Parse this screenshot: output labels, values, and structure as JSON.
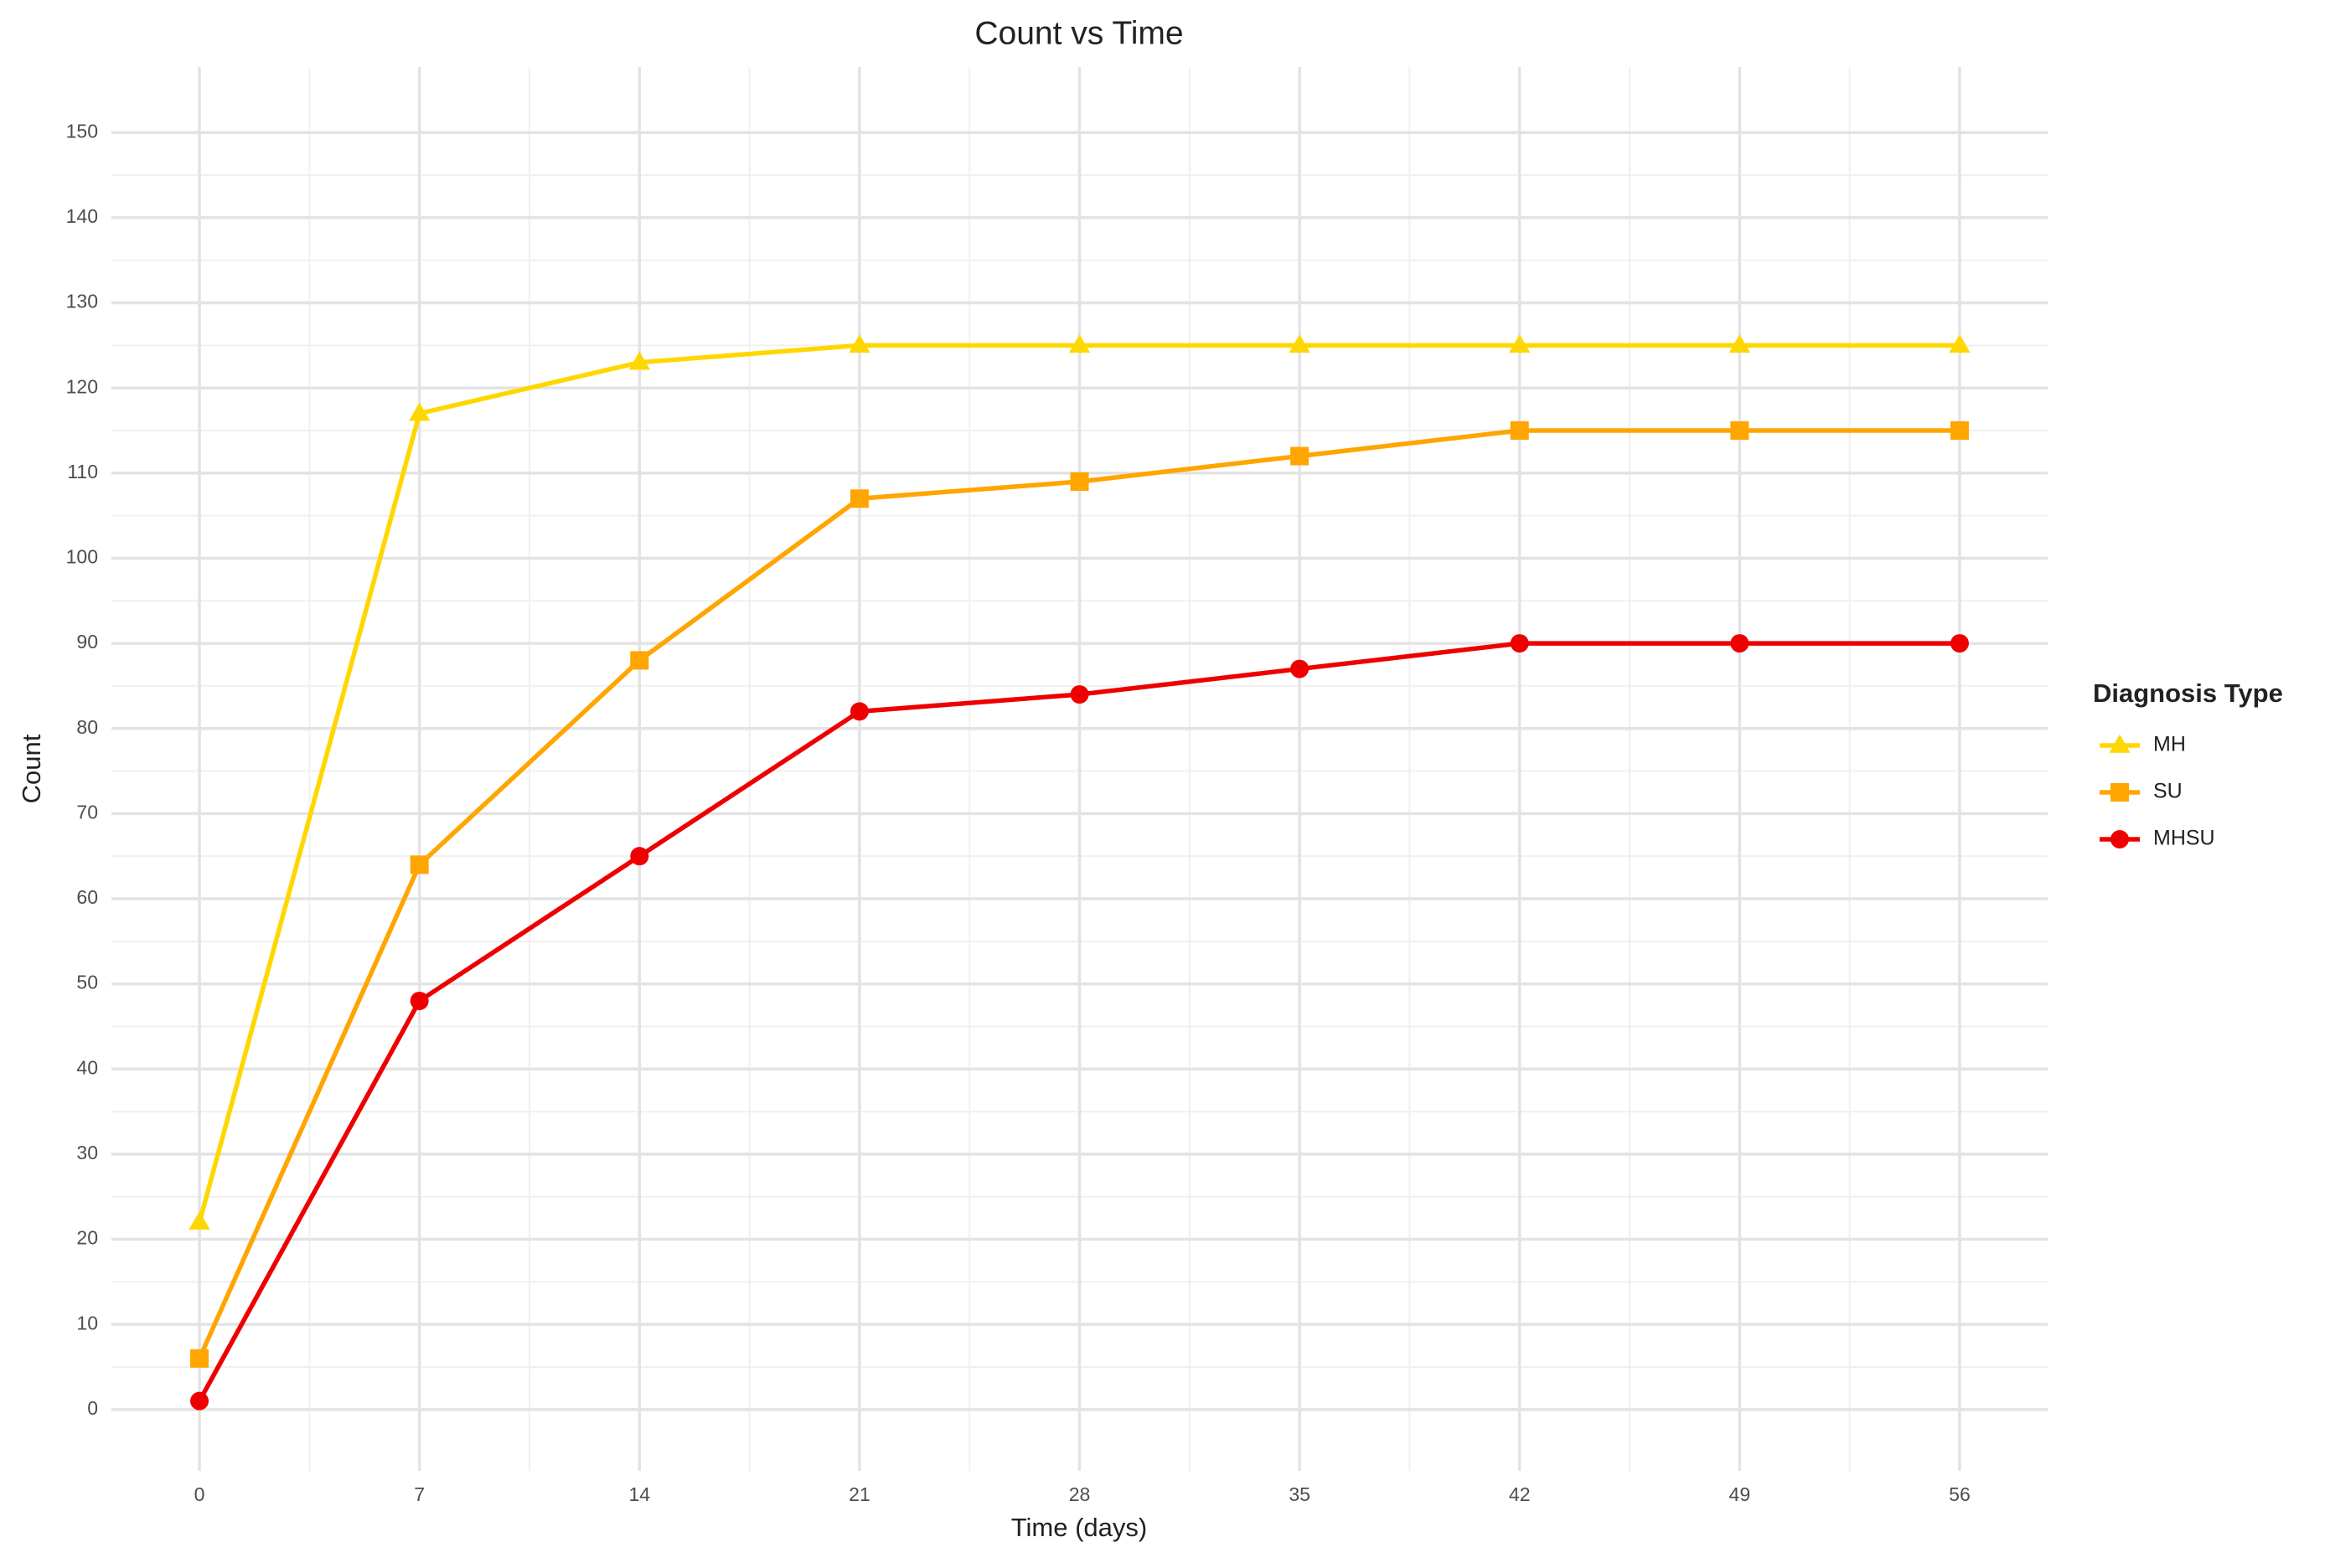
{
  "chart_data": {
    "type": "line",
    "title": "Count vs Time",
    "x_label": "Time (days)",
    "y_label": "Count",
    "legend_title": "Diagnosis Type",
    "legend": "right",
    "grid": true,
    "x": [
      0,
      7,
      14,
      21,
      28,
      35,
      42,
      49,
      56
    ],
    "series": [
      {
        "name": "MH",
        "color": "#FFD700",
        "marker": "triangle",
        "values": [
          22,
          117,
          123,
          125,
          125,
          125,
          125,
          125,
          125
        ]
      },
      {
        "name": "SU",
        "color": "#FFA500",
        "marker": "square",
        "values": [
          6,
          64,
          88,
          107,
          109,
          112,
          115,
          115,
          115
        ]
      },
      {
        "name": "MHSU",
        "color": "#EE0000",
        "marker": "circle",
        "values": [
          1,
          48,
          65,
          82,
          84,
          87,
          90,
          90,
          90
        ]
      }
    ],
    "xlim": [
      -2.8,
      58.8
    ],
    "ylim": [
      -7.2,
      157.7
    ],
    "xticks": [
      0,
      7,
      14,
      21,
      28,
      35,
      42,
      49,
      56
    ],
    "yticks": [
      0,
      10,
      20,
      30,
      40,
      50,
      60,
      70,
      80,
      90,
      100,
      110,
      120,
      130,
      140,
      150
    ]
  }
}
